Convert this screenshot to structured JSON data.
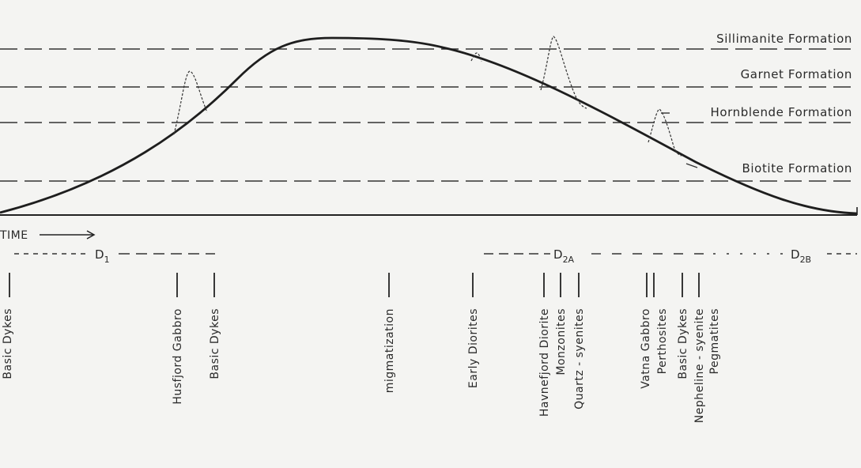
{
  "formations": [
    {
      "id": "sillimanite",
      "label": "Sillimanite Formation"
    },
    {
      "id": "garnet",
      "label": "Garnet  Formation"
    },
    {
      "id": "hornblende",
      "label": "Hornblende  Formation"
    },
    {
      "id": "biotite",
      "label": "Biotite  Formation"
    }
  ],
  "time_axis": {
    "label": "TIME"
  },
  "phases": [
    {
      "id": "d1",
      "main": "D",
      "sub": "1"
    },
    {
      "id": "d2a",
      "main": "D",
      "sub": "2A"
    },
    {
      "id": "d2b",
      "main": "D",
      "sub": "2B"
    }
  ],
  "events": [
    {
      "id": "basic-dykes-1",
      "label": "Basic Dykes"
    },
    {
      "id": "husfjord-gabbro",
      "label": "Husfjord Gabbro"
    },
    {
      "id": "basic-dykes-2",
      "label": "Basic Dykes"
    },
    {
      "id": "migmatization",
      "label": "migmatization"
    },
    {
      "id": "early-diorites",
      "label": "Early   Diorites"
    },
    {
      "id": "havnefjord-diorite",
      "label": "Havnefjord Diorite"
    },
    {
      "id": "monzonites",
      "label": "Monzonites"
    },
    {
      "id": "quartz-syenites",
      "label": "Quartz - syenites"
    },
    {
      "id": "vatna-gabbro",
      "label": "Vatna Gabbro"
    },
    {
      "id": "perthosites",
      "label": "Perthosites"
    },
    {
      "id": "basic-dykes-3",
      "label": "Basic  Dykes"
    },
    {
      "id": "nepheline-syenite",
      "label": "Nepheline - syenite"
    },
    {
      "id": "pegmatites",
      "label": "Pegmatites"
    }
  ]
}
